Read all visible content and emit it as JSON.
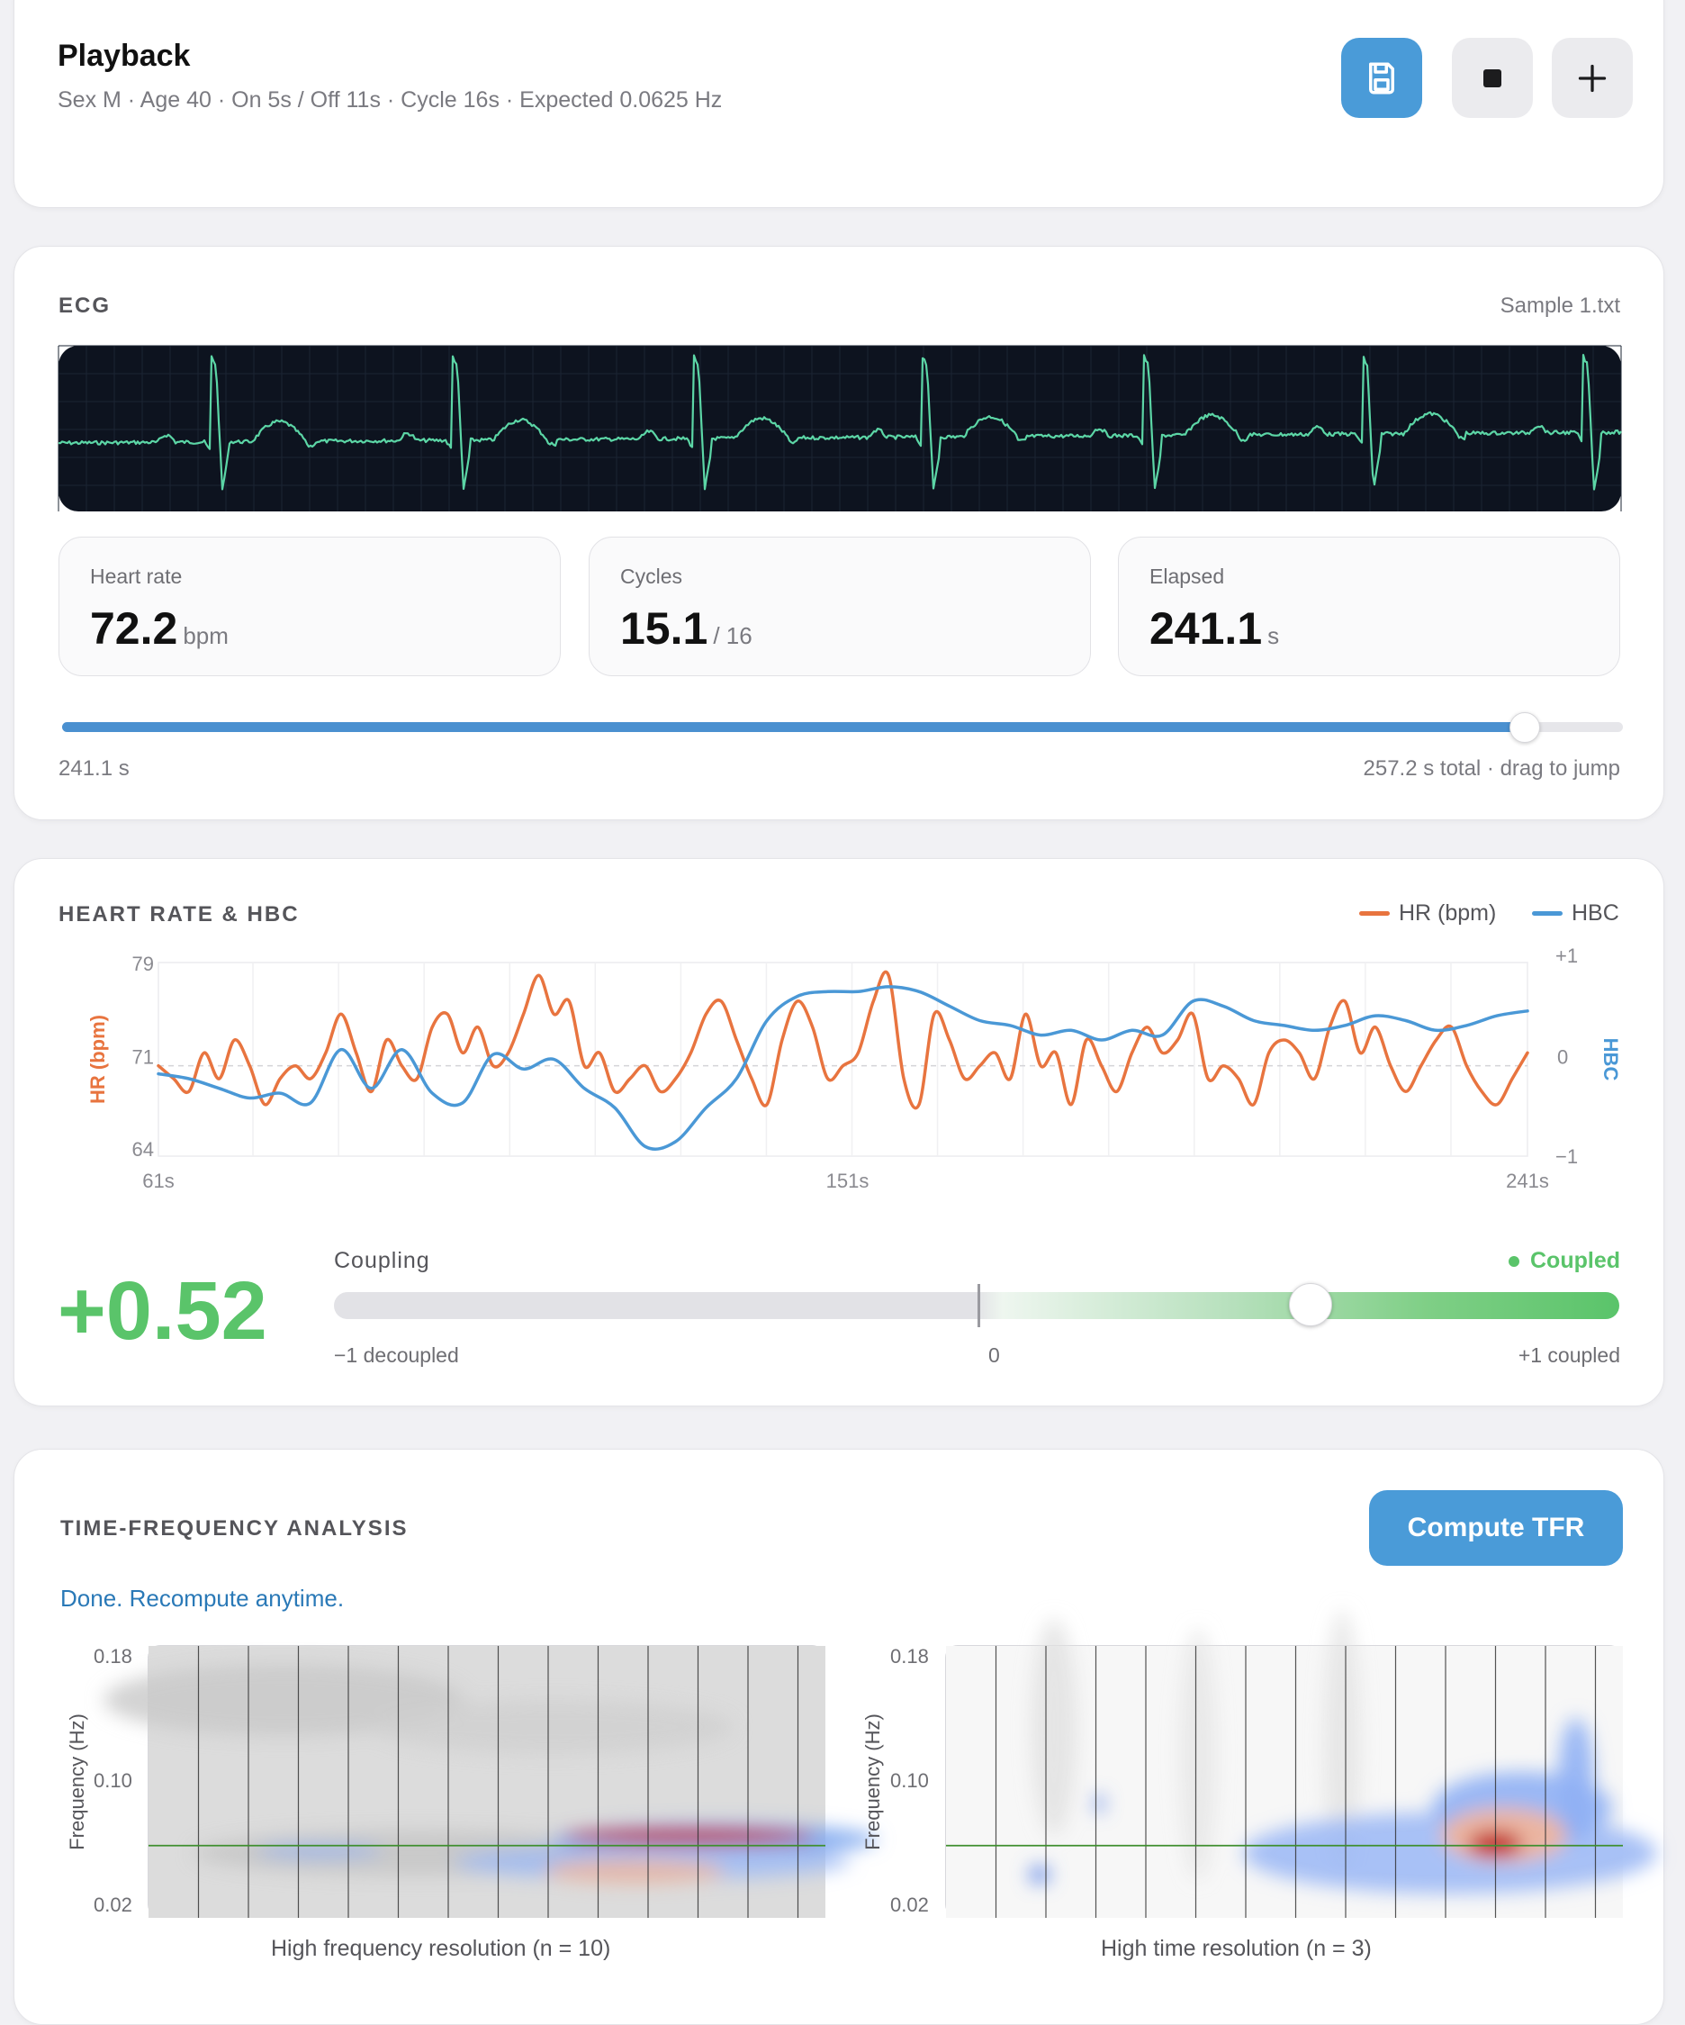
{
  "header": {
    "title": "Playback",
    "subtitle": "Sex M · Age 40 · On 5s / Off 11s · Cycle 16s · Expected 0.0625 Hz",
    "buttons": [
      {
        "name": "save",
        "icon": "save-icon"
      },
      {
        "name": "stop",
        "icon": "stop-icon"
      },
      {
        "name": "add",
        "icon": "plus-icon"
      }
    ]
  },
  "ecg": {
    "label": "ECG",
    "file": "Sample 1.txt",
    "stats": [
      {
        "label": "Heart rate",
        "value": "72.2",
        "unit": "bpm"
      },
      {
        "label": "Cycles",
        "value": "15.1",
        "unit": "/ 16"
      },
      {
        "label": "Elapsed",
        "value": "241.1",
        "unit": "s"
      }
    ],
    "progress": {
      "fraction": 0.9374,
      "left_label": "241.1 s",
      "right_label": "257.2 s total · drag to jump"
    }
  },
  "hr_hbc": {
    "label": "HEART RATE & HBC",
    "legend": [
      {
        "name": "HR (bpm)",
        "color": "#e8743f"
      },
      {
        "name": "HBC",
        "color": "#4a98d6"
      }
    ],
    "coupling": {
      "value_label": "+0.52",
      "value": 0.52,
      "title": "Coupling",
      "status": "Coupled",
      "status_color": "#5ac46a",
      "min_label": "−1 decoupled",
      "mid_label": "0",
      "max_label": "+1 coupled"
    }
  },
  "chart_data": {
    "type": "line",
    "x_unit": "s",
    "xlim": [
      61,
      241
    ],
    "x_ticks": [
      "61s",
      "151s",
      "241s"
    ],
    "y_left": {
      "label": "HR (bpm)",
      "ticks": [
        "79",
        "71",
        "64"
      ],
      "lim": [
        64,
        79
      ]
    },
    "y_right": {
      "label": "HBC",
      "ticks": [
        "+1",
        "0",
        "−1"
      ],
      "lim": [
        -1,
        1
      ]
    },
    "grid": true,
    "series": [
      {
        "name": "HR (bpm)",
        "axis": "left",
        "color": "#e8743f",
        "x": [
          61,
          63,
          65,
          67,
          69,
          71,
          73,
          75,
          77,
          79,
          81,
          83,
          85,
          87,
          89,
          91,
          93,
          95,
          97,
          99,
          101,
          103,
          105,
          107,
          109,
          111,
          113,
          115,
          117,
          119,
          121,
          123,
          125,
          127,
          129,
          131,
          133,
          135,
          137,
          139,
          141,
          143,
          145,
          147,
          149,
          151,
          153,
          155,
          157,
          159,
          161,
          163,
          165,
          167,
          169,
          171,
          173,
          175,
          177,
          179,
          181,
          183,
          185,
          187,
          189,
          191,
          193,
          195,
          197,
          199,
          201,
          203,
          205,
          207,
          209,
          211,
          213,
          215,
          217,
          219,
          221,
          223,
          225,
          227,
          229,
          231,
          233,
          235,
          237,
          239,
          241
        ],
        "y": [
          71,
          70,
          69,
          72,
          70,
          73,
          71,
          68,
          70,
          71,
          70,
          72,
          75,
          72,
          69,
          73,
          71,
          70,
          74,
          75,
          72,
          74,
          71,
          72,
          75,
          78,
          75,
          76,
          71,
          72,
          69,
          70,
          71,
          69,
          70,
          72,
          75,
          76,
          73,
          70,
          68,
          73,
          76,
          74,
          70,
          71,
          72,
          76,
          78,
          70,
          68,
          75,
          73,
          70,
          71,
          72,
          70,
          75,
          71,
          72,
          68,
          73,
          71,
          69,
          72,
          74,
          72,
          73,
          75,
          70,
          71,
          70,
          68,
          72,
          73,
          72,
          70,
          74,
          76,
          72,
          74,
          71,
          69,
          71,
          73,
          74,
          71,
          69,
          68,
          70,
          72
        ]
      },
      {
        "name": "HBC",
        "axis": "right",
        "color": "#4a98d6",
        "x": [
          61,
          65,
          69,
          73,
          77,
          81,
          85,
          89,
          93,
          97,
          101,
          105,
          109,
          113,
          117,
          121,
          125,
          129,
          133,
          137,
          141,
          145,
          149,
          153,
          157,
          161,
          165,
          169,
          173,
          177,
          181,
          185,
          189,
          193,
          197,
          201,
          205,
          209,
          213,
          217,
          221,
          225,
          229,
          233,
          237,
          241
        ],
        "y": [
          -0.15,
          -0.2,
          -0.3,
          -0.4,
          -0.35,
          -0.45,
          0.1,
          -0.3,
          0.1,
          -0.35,
          -0.45,
          0.05,
          -0.1,
          0.0,
          -0.3,
          -0.5,
          -0.9,
          -0.85,
          -0.5,
          -0.2,
          0.4,
          0.65,
          0.7,
          0.7,
          0.75,
          0.7,
          0.55,
          0.4,
          0.35,
          0.25,
          0.3,
          0.2,
          0.3,
          0.25,
          0.6,
          0.55,
          0.4,
          0.35,
          0.3,
          0.35,
          0.45,
          0.4,
          0.3,
          0.35,
          0.45,
          0.5
        ]
      }
    ],
    "reference_line": {
      "axis": "left",
      "value": 71
    }
  },
  "tfr": {
    "label": "TIME-FREQUENCY ANALYSIS",
    "button": "Compute TFR",
    "status": "Done. Recompute anytime.",
    "panels": [
      {
        "caption": "High frequency resolution (n = 10)",
        "ylabel": "Frequency (Hz)",
        "ticks": [
          "0.18",
          "0.10",
          "0.02"
        ],
        "expected_hz": 0.0625
      },
      {
        "caption": "High time resolution (n = 3)",
        "ylabel": "Frequency (Hz)",
        "ticks": [
          "0.18",
          "0.10",
          "0.02"
        ],
        "expected_hz": 0.0625
      }
    ]
  }
}
